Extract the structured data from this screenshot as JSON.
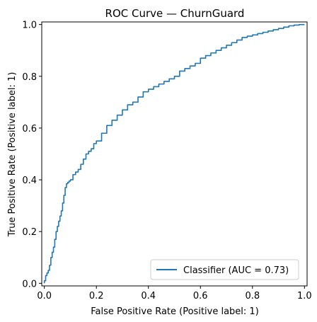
{
  "chart_data": {
    "type": "line",
    "title": "ROC Curve — ChurnGuard",
    "xlabel": "False Positive Rate (Positive label: 1)",
    "ylabel": "True Positive Rate (Positive label: 1)",
    "xlim": [
      -0.01,
      1.01
    ],
    "ylim": [
      -0.01,
      1.01
    ],
    "xticks": [
      0.0,
      0.2,
      0.4,
      0.6,
      0.8,
      1.0
    ],
    "yticks": [
      0.0,
      0.2,
      0.4,
      0.6,
      0.8,
      1.0
    ],
    "xtick_labels": [
      "0.0",
      "0.2",
      "0.4",
      "0.6",
      "0.8",
      "1.0"
    ],
    "ytick_labels": [
      "0.0",
      "0.2",
      "0.4",
      "0.6",
      "0.8",
      "1.0"
    ],
    "grid": false,
    "legend_position": "lower right",
    "series": [
      {
        "name": "Classifier (AUC = 0.73)",
        "color": "#1f77b4",
        "x": [
          0.0,
          0.0,
          0.005,
          0.01,
          0.015,
          0.02,
          0.025,
          0.03,
          0.035,
          0.04,
          0.045,
          0.05,
          0.055,
          0.06,
          0.065,
          0.07,
          0.075,
          0.08,
          0.085,
          0.09,
          0.095,
          0.1,
          0.11,
          0.12,
          0.13,
          0.14,
          0.15,
          0.16,
          0.17,
          0.18,
          0.19,
          0.2,
          0.22,
          0.24,
          0.26,
          0.28,
          0.3,
          0.32,
          0.34,
          0.36,
          0.38,
          0.4,
          0.42,
          0.44,
          0.46,
          0.48,
          0.5,
          0.52,
          0.54,
          0.56,
          0.58,
          0.6,
          0.62,
          0.64,
          0.66,
          0.68,
          0.7,
          0.72,
          0.74,
          0.76,
          0.78,
          0.8,
          0.82,
          0.84,
          0.86,
          0.88,
          0.9,
          0.92,
          0.94,
          0.96,
          0.98,
          1.0
        ],
        "y": [
          0.0,
          0.01,
          0.03,
          0.04,
          0.05,
          0.07,
          0.1,
          0.12,
          0.14,
          0.17,
          0.2,
          0.22,
          0.24,
          0.26,
          0.28,
          0.31,
          0.34,
          0.37,
          0.385,
          0.39,
          0.395,
          0.4,
          0.42,
          0.43,
          0.44,
          0.46,
          0.48,
          0.5,
          0.51,
          0.52,
          0.54,
          0.55,
          0.58,
          0.61,
          0.63,
          0.65,
          0.67,
          0.69,
          0.7,
          0.72,
          0.74,
          0.75,
          0.76,
          0.77,
          0.78,
          0.79,
          0.8,
          0.82,
          0.83,
          0.84,
          0.85,
          0.87,
          0.88,
          0.89,
          0.9,
          0.91,
          0.92,
          0.93,
          0.94,
          0.95,
          0.955,
          0.96,
          0.965,
          0.97,
          0.975,
          0.98,
          0.985,
          0.99,
          0.995,
          0.998,
          1.0,
          1.0
        ]
      }
    ]
  }
}
